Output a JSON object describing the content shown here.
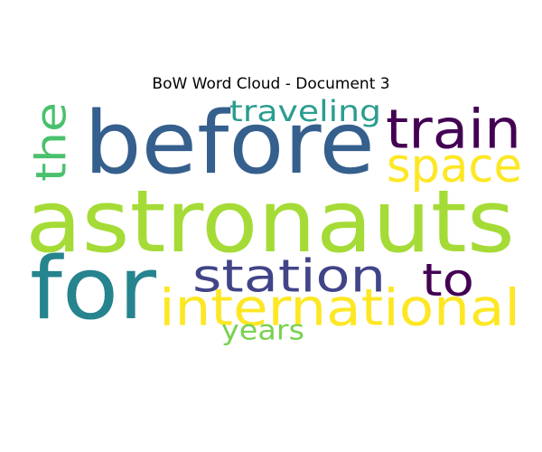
{
  "title": "BoW Word Cloud - Document 3",
  "words": [
    {
      "text": "astronauts",
      "color": "#a5db36"
    },
    {
      "text": "before",
      "color": "#355f8d"
    },
    {
      "text": "for",
      "color": "#25848e"
    },
    {
      "text": "international",
      "color": "#fde725"
    },
    {
      "text": "train",
      "color": "#440154"
    },
    {
      "text": "station",
      "color": "#414487"
    },
    {
      "text": "space",
      "color": "#fde725"
    },
    {
      "text": "the",
      "color": "#4ac16d"
    },
    {
      "text": "to",
      "color": "#440154"
    },
    {
      "text": "traveling",
      "color": "#2a9d8f"
    },
    {
      "text": "years",
      "color": "#7ad151"
    }
  ]
}
